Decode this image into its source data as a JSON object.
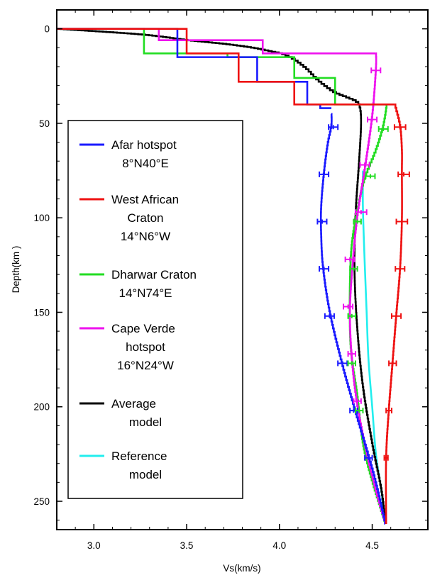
{
  "chart_data": {
    "type": "line",
    "xlabel": "Vs(km/s)",
    "ylabel": "Depth(km  )",
    "xlim": [
      2.8,
      4.8
    ],
    "ylim": [
      265,
      -10
    ],
    "y_inverted": true,
    "x_ticks": [
      3.0,
      3.5,
      4.0,
      4.5
    ],
    "x_tick_labels": [
      "3.0",
      "3.5",
      "4.0",
      "4.5"
    ],
    "y_ticks": [
      0,
      50,
      100,
      150,
      200,
      250
    ],
    "y_tick_labels": [
      "0",
      "50",
      "100",
      "150",
      "200",
      "250"
    ],
    "grid": false,
    "legend_position": "left",
    "legend": [
      {
        "series": "afar",
        "lines": [
          "Afar hotspot",
          "8°N40°E"
        ]
      },
      {
        "series": "west_african",
        "lines": [
          "West African",
          "Craton",
          "14°N6°W"
        ]
      },
      {
        "series": "dharwar",
        "lines": [
          "Dharwar Craton",
          "14°N74°E"
        ]
      },
      {
        "series": "cape_verde",
        "lines": [
          "Cape Verde",
          "hotspot",
          "16°N24°W"
        ]
      },
      {
        "series": "average",
        "lines": [
          "Average",
          "model"
        ]
      },
      {
        "series": "reference",
        "lines": [
          "Reference",
          "model"
        ]
      }
    ],
    "series": [
      {
        "id": "afar",
        "name": "Afar hotspot 8°N40°E",
        "color": "#1a1aff",
        "shape": "step",
        "steps": [
          [
            2.8,
            0
          ],
          [
            3.45,
            0
          ],
          [
            3.45,
            15
          ],
          [
            3.88,
            15
          ],
          [
            3.88,
            28
          ],
          [
            4.15,
            28
          ],
          [
            4.15,
            40
          ],
          [
            4.22,
            40
          ],
          [
            4.22,
            42
          ],
          [
            4.28,
            42
          ]
        ],
        "curve": [
          [
            4.28,
            45
          ],
          [
            4.28,
            52
          ],
          [
            4.26,
            62
          ],
          [
            4.24,
            77
          ],
          [
            4.225,
            95
          ],
          [
            4.225,
            110
          ],
          [
            4.235,
            127
          ],
          [
            4.27,
            150
          ],
          [
            4.33,
            175
          ],
          [
            4.4,
            200
          ],
          [
            4.49,
            230
          ],
          [
            4.53,
            245
          ],
          [
            4.57,
            262
          ]
        ]
      },
      {
        "id": "west_african",
        "name": "West African Craton 14°N6°W",
        "color": "#ee1111",
        "shape": "step",
        "steps": [
          [
            2.8,
            0
          ],
          [
            3.5,
            0
          ],
          [
            3.5,
            13
          ],
          [
            3.78,
            13
          ],
          [
            3.78,
            28
          ],
          [
            4.08,
            28
          ],
          [
            4.08,
            40
          ],
          [
            4.62,
            40
          ]
        ],
        "curve": [
          [
            4.62,
            40
          ],
          [
            4.65,
            52
          ],
          [
            4.66,
            65
          ],
          [
            4.66,
            77
          ],
          [
            4.66,
            102
          ],
          [
            4.65,
            128
          ],
          [
            4.63,
            152
          ],
          [
            4.61,
            177
          ],
          [
            4.59,
            202
          ],
          [
            4.575,
            228
          ],
          [
            4.575,
            262
          ]
        ]
      },
      {
        "id": "dharwar",
        "name": "Dharwar Craton 14°N74°E",
        "color": "#22dd22",
        "shape": "step",
        "steps": [
          [
            2.8,
            0
          ],
          [
            3.27,
            0
          ],
          [
            3.27,
            13
          ],
          [
            3.72,
            13
          ],
          [
            3.72,
            15
          ],
          [
            4.08,
            15
          ],
          [
            4.08,
            26
          ],
          [
            4.3,
            26
          ],
          [
            4.3,
            40
          ],
          [
            4.58,
            40
          ]
        ],
        "curve": [
          [
            4.58,
            40
          ],
          [
            4.56,
            52
          ],
          [
            4.52,
            65
          ],
          [
            4.46,
            80
          ],
          [
            4.42,
            97
          ],
          [
            4.39,
            115
          ],
          [
            4.38,
            135
          ],
          [
            4.38,
            160
          ],
          [
            4.39,
            175
          ],
          [
            4.42,
            195
          ],
          [
            4.45,
            220
          ],
          [
            4.5,
            240
          ],
          [
            4.57,
            262
          ]
        ]
      },
      {
        "id": "cape_verde",
        "name": "Cape Verde hotspot 16°N24°W",
        "color": "#ee11ee",
        "shape": "step",
        "steps": [
          [
            2.8,
            0
          ],
          [
            3.35,
            0
          ],
          [
            3.35,
            6
          ],
          [
            3.91,
            6
          ],
          [
            3.91,
            13
          ],
          [
            4.52,
            13
          ]
        ],
        "curve": [
          [
            4.52,
            13
          ],
          [
            4.52,
            22
          ],
          [
            4.5,
            47
          ],
          [
            4.46,
            75
          ],
          [
            4.42,
            100
          ],
          [
            4.395,
            125
          ],
          [
            4.38,
            150
          ],
          [
            4.39,
            175
          ],
          [
            4.42,
            200
          ],
          [
            4.47,
            225
          ],
          [
            4.52,
            245
          ],
          [
            4.57,
            262
          ]
        ]
      },
      {
        "id": "average",
        "name": "Average model",
        "color": "#000000",
        "shape": "curve",
        "curve": [
          [
            2.8,
            0
          ],
          [
            3.25,
            3
          ],
          [
            3.5,
            6
          ],
          [
            3.7,
            8
          ],
          [
            3.85,
            10
          ],
          [
            3.95,
            12
          ],
          [
            4.0,
            13
          ],
          [
            4.05,
            15
          ],
          [
            4.1,
            18
          ],
          [
            4.15,
            22
          ],
          [
            4.2,
            27
          ],
          [
            4.28,
            33
          ],
          [
            4.35,
            36
          ],
          [
            4.4,
            38
          ],
          [
            4.43,
            41
          ],
          [
            4.44,
            50
          ],
          [
            4.43,
            70
          ],
          [
            4.41,
            100
          ],
          [
            4.405,
            130
          ],
          [
            4.42,
            160
          ],
          [
            4.45,
            190
          ],
          [
            4.5,
            220
          ],
          [
            4.55,
            245
          ],
          [
            4.57,
            262
          ]
        ]
      },
      {
        "id": "reference",
        "name": "Reference model",
        "color": "#22eeee",
        "shape": "curve",
        "curve": [
          [
            4.45,
            75
          ],
          [
            4.45,
            95
          ],
          [
            4.46,
            125
          ],
          [
            4.47,
            150
          ],
          [
            4.48,
            175
          ],
          [
            4.5,
            200
          ],
          [
            4.52,
            225
          ],
          [
            4.55,
            245
          ],
          [
            4.57,
            262
          ]
        ]
      }
    ],
    "error_bars": [
      {
        "series": "afar",
        "color": "#1a1aff",
        "points": [
          [
            4.29,
            52,
            0.025
          ],
          [
            4.24,
            77,
            0.025
          ],
          [
            4.23,
            102,
            0.025
          ],
          [
            4.24,
            127,
            0.025
          ],
          [
            4.27,
            152,
            0.025
          ],
          [
            4.34,
            177,
            0.025
          ],
          [
            4.4,
            202,
            0.02
          ],
          [
            4.48,
            227,
            0.02
          ]
        ]
      },
      {
        "series": "west_african",
        "color": "#ee1111",
        "points": [
          [
            4.65,
            52,
            0.03
          ],
          [
            4.67,
            77,
            0.03
          ],
          [
            4.66,
            102,
            0.03
          ],
          [
            4.65,
            127,
            0.025
          ],
          [
            4.63,
            152,
            0.025
          ],
          [
            4.61,
            177,
            0.02
          ],
          [
            4.59,
            202,
            0.015
          ],
          [
            4.575,
            227,
            0.01
          ]
        ]
      },
      {
        "series": "dharwar",
        "color": "#22dd22",
        "points": [
          [
            4.56,
            53,
            0.025
          ],
          [
            4.49,
            78,
            0.025
          ],
          [
            4.42,
            102,
            0.02
          ],
          [
            4.4,
            127,
            0.02
          ],
          [
            4.39,
            152,
            0.02
          ],
          [
            4.39,
            177,
            0.02
          ],
          [
            4.43,
            202,
            0.02
          ]
        ]
      },
      {
        "series": "cape_verde",
        "color": "#ee11ee",
        "points": [
          [
            4.52,
            22,
            0.025
          ],
          [
            4.5,
            48,
            0.025
          ],
          [
            4.46,
            72,
            0.025
          ],
          [
            4.44,
            97,
            0.03
          ],
          [
            4.38,
            122,
            0.025
          ],
          [
            4.37,
            147,
            0.025
          ],
          [
            4.39,
            172,
            0.02
          ],
          [
            4.42,
            197,
            0.02
          ]
        ]
      }
    ]
  }
}
